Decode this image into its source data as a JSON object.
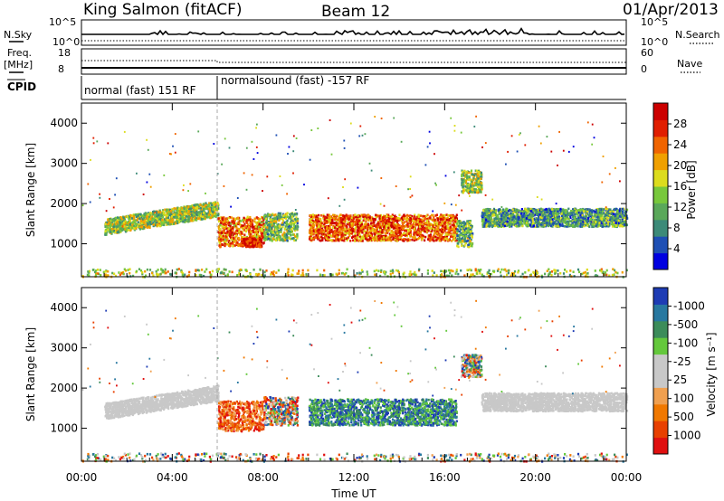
{
  "header": {
    "station": "King Salmon (fitACF)",
    "beam": "Beam 12",
    "date": "01/Apr/2013"
  },
  "strips": {
    "nsky_label": "N.Sky",
    "nsearch_label": "N.Search",
    "nsky_ticks": [
      "10^5",
      "10^0"
    ],
    "nsearch_ticks": [
      "10^5",
      "10^0"
    ],
    "freq_label_1": "Freq.",
    "freq_label_2": "[MHz]",
    "freq_ticks": [
      "18",
      "8"
    ],
    "nave_label": "Nave",
    "nave_ticks": [
      "60",
      "0"
    ],
    "cpid_label": "CPID",
    "cpid_segments": [
      {
        "label": "normal (fast) 151 RF",
        "start_hour": 0,
        "end_hour": 6
      },
      {
        "label": "normalsound (fast) -157 RF",
        "start_hour": 6,
        "end_hour": 24
      }
    ]
  },
  "chart_data": [
    {
      "type": "heatmap",
      "panel": "power",
      "ylabel": "Slant Range [km]",
      "ylim": [
        180,
        4500
      ],
      "yticks": [
        1000,
        2000,
        3000,
        4000
      ],
      "xlim": [
        0,
        24
      ],
      "colorbar": {
        "label": "Power [dB]",
        "ticks": [
          "4",
          "8",
          "12",
          "16",
          "20",
          "24",
          "28"
        ],
        "colors": [
          "#0000e0",
          "#1e4fb4",
          "#3c8a78",
          "#5aa85a",
          "#78c83c",
          "#dcdc1e",
          "#f0a000",
          "#f06400",
          "#e01e00",
          "#cc0000"
        ]
      },
      "regions": [
        {
          "t0": 1.0,
          "t1": 6.0,
          "r0": 1250,
          "r1": 1900,
          "level": 0.45,
          "tilt": 450
        },
        {
          "t0": 6.0,
          "t1": 8.0,
          "r0": 950,
          "r1": 1700,
          "level": 0.75
        },
        {
          "t0": 7.0,
          "t1": 7.9,
          "r0": 950,
          "r1": 1150,
          "level": 0.95
        },
        {
          "t0": 8.0,
          "t1": 9.5,
          "r0": 1100,
          "r1": 1800,
          "level": 0.4
        },
        {
          "t0": 10.0,
          "t1": 16.5,
          "r0": 1100,
          "r1": 1750,
          "level": 0.8
        },
        {
          "t0": 16.5,
          "t1": 17.2,
          "r0": 950,
          "r1": 1600,
          "level": 0.35
        },
        {
          "t0": 16.7,
          "t1": 17.6,
          "r0": 2300,
          "r1": 2850,
          "level": 0.45
        },
        {
          "t0": 17.6,
          "t1": 24.0,
          "r0": 1450,
          "r1": 1900,
          "level": 0.3
        },
        {
          "t0": 0.0,
          "t1": 24.0,
          "r0": 200,
          "r1": 400,
          "level": 0.5
        }
      ]
    },
    {
      "type": "heatmap",
      "panel": "velocity",
      "ylabel": "Slant Range [km]",
      "ylim": [
        180,
        4500
      ],
      "yticks": [
        1000,
        2000,
        3000,
        4000
      ],
      "xlim": [
        0,
        24
      ],
      "xticks": [
        "00:00",
        "04:00",
        "08:00",
        "12:00",
        "16:00",
        "20:00",
        "00:00"
      ],
      "xlabel": "Time UT",
      "colorbar": {
        "label": "Velocity [m s⁻¹]",
        "ticks": [
          "1000",
          "500",
          "100",
          "25",
          "-25",
          "-100",
          "-500",
          "-1000"
        ],
        "colors": [
          "#1e3cb4",
          "#2878a0",
          "#3c8c5a",
          "#64c83c",
          "#c8c8c8",
          "#c8c8c8",
          "#f0a050",
          "#f07800",
          "#e84000",
          "#e01010"
        ]
      },
      "regions": [
        {
          "t0": 1.0,
          "t1": 6.0,
          "r0": 1250,
          "r1": 1900,
          "class": "ground",
          "tilt": 450
        },
        {
          "t0": 6.0,
          "t1": 8.0,
          "r0": 950,
          "r1": 1700,
          "class": "negative"
        },
        {
          "t0": 8.0,
          "t1": 9.5,
          "r0": 1100,
          "r1": 1800,
          "class": "mixed"
        },
        {
          "t0": 10.0,
          "t1": 16.5,
          "r0": 1100,
          "r1": 1750,
          "class": "positive"
        },
        {
          "t0": 16.7,
          "t1": 17.6,
          "r0": 2300,
          "r1": 2850,
          "class": "mixed"
        },
        {
          "t0": 17.6,
          "t1": 24.0,
          "r0": 1450,
          "r1": 1900,
          "class": "ground"
        },
        {
          "t0": 0.0,
          "t1": 24.0,
          "r0": 200,
          "r1": 400,
          "class": "mixed"
        }
      ]
    }
  ]
}
